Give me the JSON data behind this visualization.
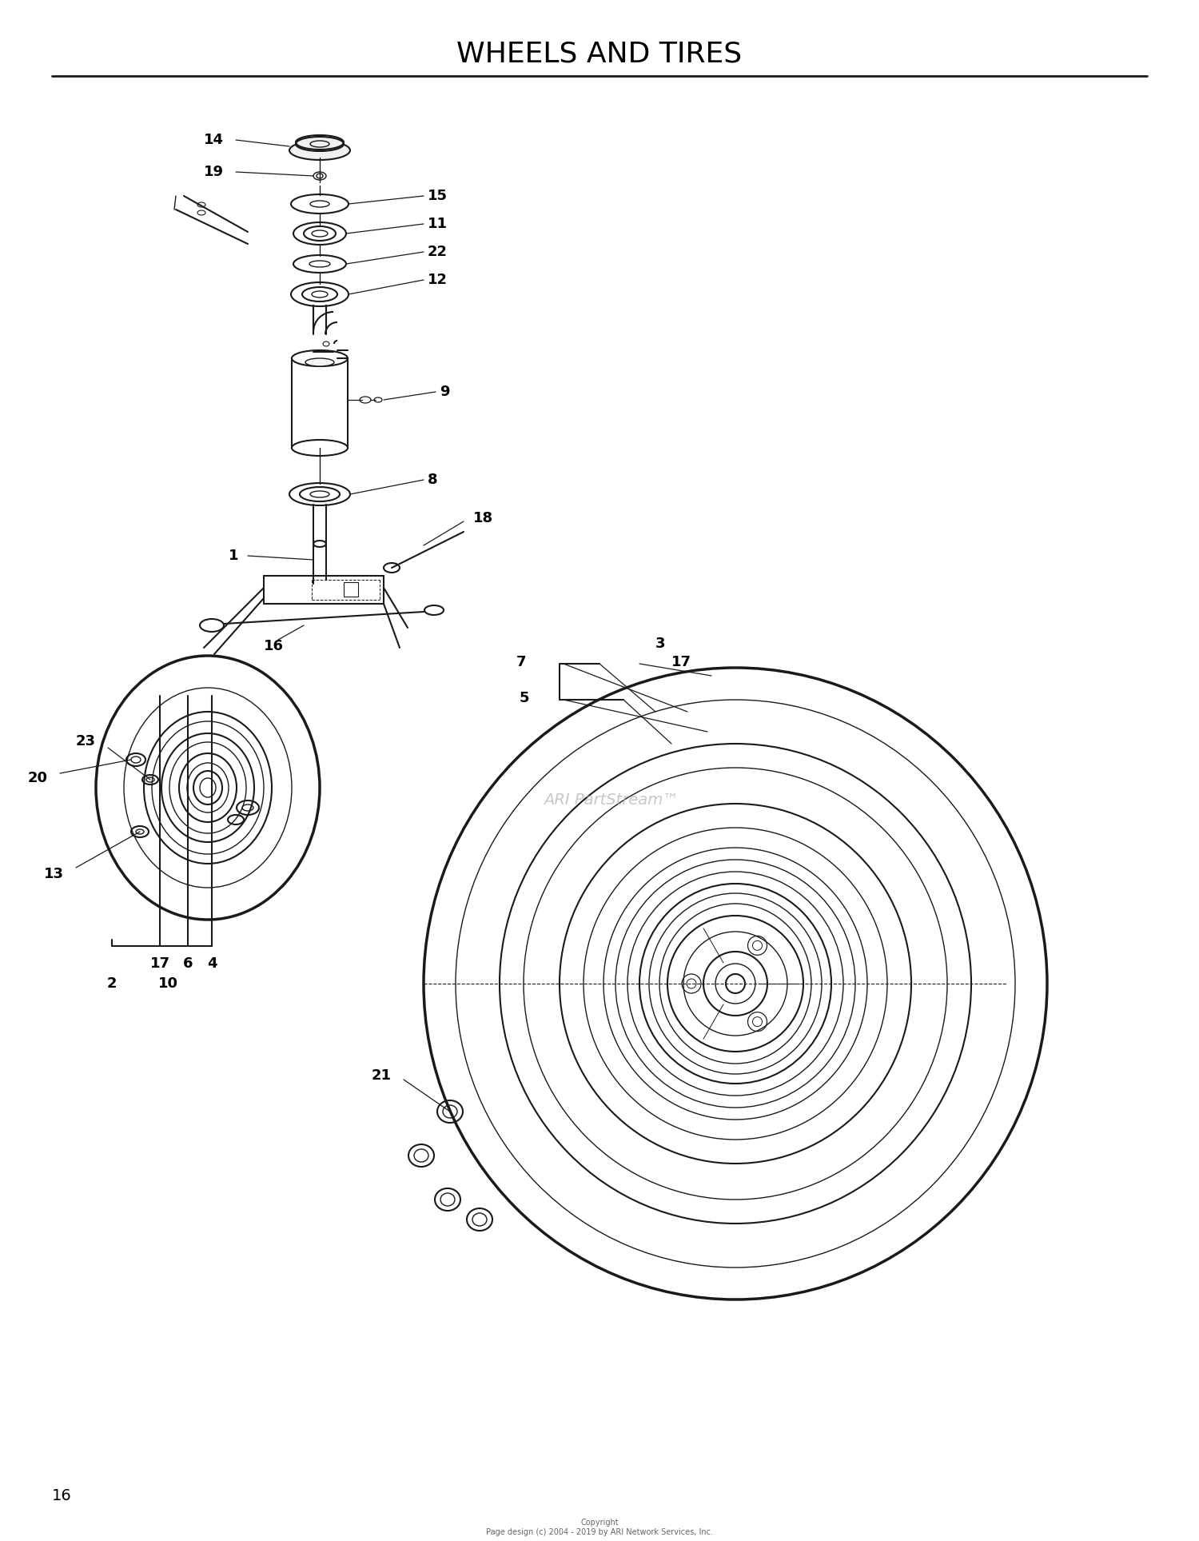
{
  "title": "WHEELS AND TIRES",
  "page_number": "16",
  "background_color": "#ffffff",
  "line_color": "#1a1a1a",
  "text_color": "#000000",
  "copyright_text": "Copyright\nPage design (c) 2004 - 2019 by ARI Network Services, Inc.",
  "watermark": "ARI PartStream™",
  "title_fontsize": 26,
  "label_fontsize": 13
}
